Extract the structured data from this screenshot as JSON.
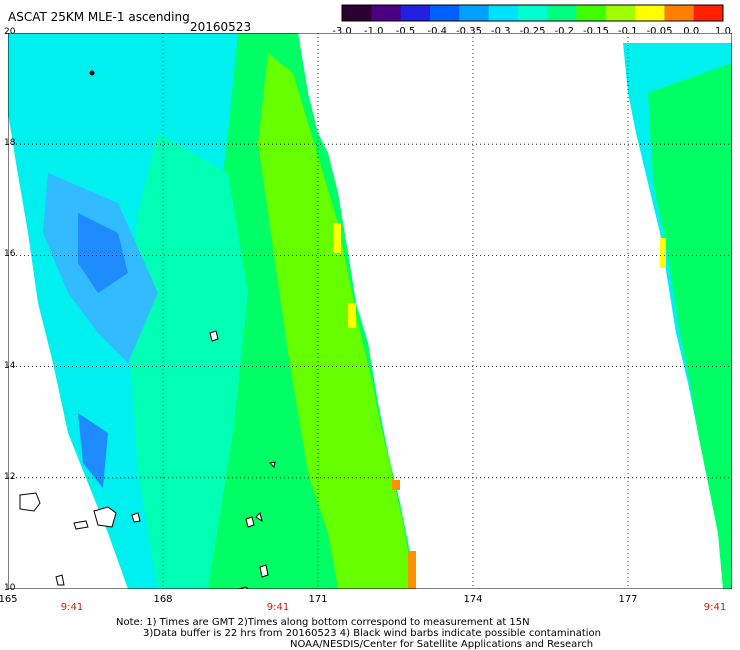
{
  "header": {
    "title": "ASCAT 25KM MLE-1 ascending",
    "date": "20160523"
  },
  "colorbar": {
    "labels": [
      "-3.0",
      "-1.0",
      "-0.5",
      "-0.4",
      "-0.35",
      "-0.3",
      "-0.25",
      "-0.2",
      "-0.15",
      "-0.1",
      "-0.05",
      "0.0",
      "1.0"
    ],
    "colors": [
      "#2a0030",
      "#4b0082",
      "#2020e0",
      "#0060ff",
      "#00a0ff",
      "#00e0ff",
      "#00ffd0",
      "#00ff80",
      "#40ff00",
      "#a0ff00",
      "#ffff00",
      "#ff8000",
      "#ff2000"
    ]
  },
  "map": {
    "lat_labels": [
      "20",
      "18",
      "16",
      "14",
      "12",
      "10"
    ],
    "lon_labels": [
      "165",
      "168",
      "171",
      "174",
      "177"
    ],
    "time_labels": [
      "9:41",
      "9:41",
      "9:41"
    ],
    "land_color": "#ffffff",
    "colors": {
      "deep_blue": "#1e8cff",
      "light_blue": "#33bbff",
      "cyan": "#00f0f0",
      "aqua_green": "#00ffb4",
      "green": "#00ff64",
      "lime": "#66ff00",
      "yellow": "#ffff00",
      "orange": "#ff9000"
    }
  },
  "footer": {
    "note1": "Note: 1) Times are GMT 2)Times along bottom correspond to measurement at 15N",
    "note2": "3)Data buffer is 22 hrs from 20160523 4) Black wind barbs indicate possible contamination",
    "credit": "NOAA/NESDIS/Center for Satellite Applications and Research"
  }
}
